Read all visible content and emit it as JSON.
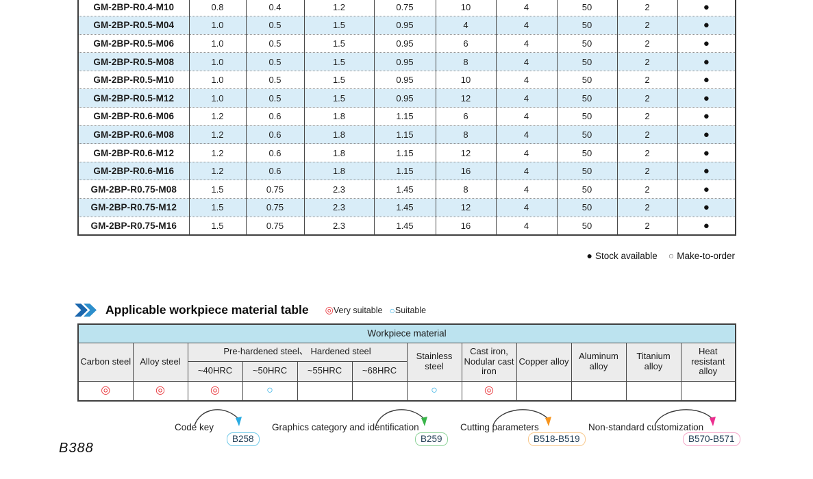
{
  "spec_table": {
    "rows": [
      {
        "model": "GM-2BP-R0.4-M10",
        "values": [
          "0.8",
          "0.4",
          "1.2",
          "0.75",
          "10",
          "4",
          "50",
          "2"
        ],
        "stock": "●",
        "shaded": false
      },
      {
        "model": "GM-2BP-R0.5-M04",
        "values": [
          "1.0",
          "0.5",
          "1.5",
          "0.95",
          "4",
          "4",
          "50",
          "2"
        ],
        "stock": "●",
        "shaded": true
      },
      {
        "model": "GM-2BP-R0.5-M06",
        "values": [
          "1.0",
          "0.5",
          "1.5",
          "0.95",
          "6",
          "4",
          "50",
          "2"
        ],
        "stock": "●",
        "shaded": false
      },
      {
        "model": "GM-2BP-R0.5-M08",
        "values": [
          "1.0",
          "0.5",
          "1.5",
          "0.95",
          "8",
          "4",
          "50",
          "2"
        ],
        "stock": "●",
        "shaded": true
      },
      {
        "model": "GM-2BP-R0.5-M10",
        "values": [
          "1.0",
          "0.5",
          "1.5",
          "0.95",
          "10",
          "4",
          "50",
          "2"
        ],
        "stock": "●",
        "shaded": false
      },
      {
        "model": "GM-2BP-R0.5-M12",
        "values": [
          "1.0",
          "0.5",
          "1.5",
          "0.95",
          "12",
          "4",
          "50",
          "2"
        ],
        "stock": "●",
        "shaded": true
      },
      {
        "model": "GM-2BP-R0.6-M06",
        "values": [
          "1.2",
          "0.6",
          "1.8",
          "1.15",
          "6",
          "4",
          "50",
          "2"
        ],
        "stock": "●",
        "shaded": false
      },
      {
        "model": "GM-2BP-R0.6-M08",
        "values": [
          "1.2",
          "0.6",
          "1.8",
          "1.15",
          "8",
          "4",
          "50",
          "2"
        ],
        "stock": "●",
        "shaded": true
      },
      {
        "model": "GM-2BP-R0.6-M12",
        "values": [
          "1.2",
          "0.6",
          "1.8",
          "1.15",
          "12",
          "4",
          "50",
          "2"
        ],
        "stock": "●",
        "shaded": false
      },
      {
        "model": "GM-2BP-R0.6-M16",
        "values": [
          "1.2",
          "0.6",
          "1.8",
          "1.15",
          "16",
          "4",
          "50",
          "2"
        ],
        "stock": "●",
        "shaded": true
      },
      {
        "model": "GM-2BP-R0.75-M08",
        "values": [
          "1.5",
          "0.75",
          "2.3",
          "1.45",
          "8",
          "4",
          "50",
          "2"
        ],
        "stock": "●",
        "shaded": false
      },
      {
        "model": "GM-2BP-R0.75-M12",
        "values": [
          "1.5",
          "0.75",
          "2.3",
          "1.45",
          "12",
          "4",
          "50",
          "2"
        ],
        "stock": "●",
        "shaded": true
      },
      {
        "model": "GM-2BP-R0.75-M16",
        "values": [
          "1.5",
          "0.75",
          "2.3",
          "1.45",
          "16",
          "4",
          "50",
          "2"
        ],
        "stock": "●",
        "shaded": false
      }
    ]
  },
  "stock_legend": {
    "stock_symbol": "●",
    "stock_label": "Stock available",
    "mto_symbol": "○",
    "mto_label": "Make-to-order"
  },
  "material_section": {
    "title": "Applicable workpiece material table",
    "very_suitable_symbol": "◎",
    "very_suitable_label": "Very suitable",
    "suitable_symbol": "○",
    "suitable_label": "Suitable",
    "table": {
      "title_bar": "Workpiece material",
      "col_carbon": "Carbon steel",
      "col_alloy": "Alloy steel",
      "group_header": "Pre-hardened steel、 Hardened steel",
      "hrc_cols": [
        "~40HRC",
        "~50HRC",
        "~55HRC",
        "~68HRC"
      ],
      "col_stainless": "Stainless steel",
      "col_cast_iron": "Cast iron, Nodular cast iron",
      "col_copper": "Copper alloy",
      "col_aluminum": "Aluminum alloy",
      "col_titanium": "Titanium alloy",
      "col_heat": "Heat resistant alloy",
      "ratings": [
        "very",
        "very",
        "very",
        "suitable",
        "",
        "",
        "suitable",
        "very",
        "",
        "",
        "",
        ""
      ]
    }
  },
  "footer": {
    "page_number": "B388",
    "links": [
      {
        "label": "Code key",
        "badge": "B258",
        "accent": "#29abe2",
        "border": "#6fc9e8"
      },
      {
        "label": "Graphics category and identification",
        "badge": "B259",
        "accent": "#39b54a",
        "border": "#8fd39a"
      },
      {
        "label": "Cutting parameters",
        "badge": "B518-B519",
        "accent": "#f7941d",
        "border": "#f8c98d"
      },
      {
        "label": "Non-standard customization",
        "badge": "B570-B571",
        "accent": "#ec2d8f",
        "border": "#f4a6c8"
      }
    ]
  },
  "colors": {
    "row_shade": "#d9edf8",
    "very_suitable": "#e8383d",
    "suitable": "#29abe2",
    "mat_header_blue": "#bce3ef",
    "mat_header_gray": "#ececec"
  }
}
